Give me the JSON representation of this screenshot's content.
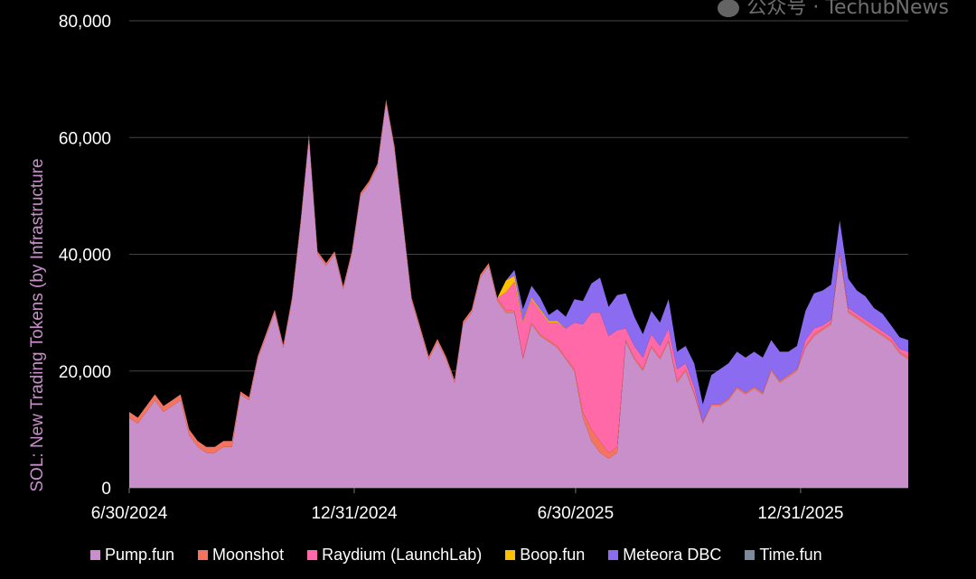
{
  "chart_data": {
    "type": "area",
    "stacked": true,
    "title": "",
    "xlabel": "",
    "ylabel": "SOL: New Trading Tokens (by Infrastructure",
    "ylim": [
      0,
      80000
    ],
    "yticks": [
      "0",
      "20,000",
      "40,000",
      "60,000",
      "80,000"
    ],
    "ytick_values": [
      0,
      20000,
      40000,
      60000,
      80000
    ],
    "xticks": [
      "6/30/2024",
      "12/31/2024",
      "6/30/2025",
      "12/31/2025"
    ],
    "xtick_values": [
      "2024-06-30",
      "2024-12-31",
      "2025-06-30",
      "2025-12-31"
    ],
    "grid": true,
    "legend_position": "bottom",
    "x": [
      "2024-06-30",
      "2024-07-07",
      "2024-07-14",
      "2024-07-21",
      "2024-07-28",
      "2024-08-04",
      "2024-08-11",
      "2024-08-18",
      "2024-08-25",
      "2024-09-01",
      "2024-09-08",
      "2024-09-15",
      "2024-09-22",
      "2024-09-29",
      "2024-10-06",
      "2024-10-13",
      "2024-10-20",
      "2024-10-27",
      "2024-11-03",
      "2024-11-10",
      "2024-11-17",
      "2024-11-24",
      "2024-12-01",
      "2024-12-08",
      "2024-12-15",
      "2024-12-22",
      "2024-12-29",
      "2025-01-05",
      "2025-01-12",
      "2025-01-19",
      "2025-01-26",
      "2025-02-02",
      "2025-02-09",
      "2025-02-16",
      "2025-02-23",
      "2025-03-02",
      "2025-03-09",
      "2025-03-16",
      "2025-03-23",
      "2025-03-30",
      "2025-04-06",
      "2025-04-13",
      "2025-04-20",
      "2025-04-27",
      "2025-05-04",
      "2025-05-11",
      "2025-05-18",
      "2025-05-25",
      "2025-06-01",
      "2025-06-08",
      "2025-06-15",
      "2025-06-22",
      "2025-06-29",
      "2025-07-06",
      "2025-07-13",
      "2025-07-20",
      "2025-07-27",
      "2025-08-03",
      "2025-08-10",
      "2025-08-17",
      "2025-08-24",
      "2025-08-31",
      "2025-09-07",
      "2025-09-14",
      "2025-09-21",
      "2025-09-28",
      "2025-10-05",
      "2025-10-12",
      "2025-10-19",
      "2025-10-26",
      "2025-11-02",
      "2025-11-09",
      "2025-11-16",
      "2025-11-23",
      "2025-11-30",
      "2025-12-07",
      "2025-12-14",
      "2025-12-21",
      "2025-12-28",
      "2026-01-04",
      "2026-01-11",
      "2026-01-18",
      "2026-01-25",
      "2026-02-01",
      "2026-02-08",
      "2026-02-15",
      "2026-02-22",
      "2026-03-01",
      "2026-03-08",
      "2026-03-15",
      "2026-03-22",
      "2026-03-29"
    ],
    "series": [
      {
        "name": "Pump.fun",
        "color": "#C88FCB",
        "values": [
          12000,
          11000,
          13000,
          15000,
          13000,
          14000,
          15000,
          9000,
          7000,
          6000,
          6000,
          7000,
          7000,
          16000,
          15000,
          22000,
          26000,
          30000,
          24000,
          32000,
          45000,
          60000,
          40000,
          38000,
          40000,
          34000,
          40000,
          50000,
          52000,
          55000,
          66000,
          58000,
          45000,
          32000,
          27000,
          22000,
          25000,
          22000,
          18000,
          28000,
          30000,
          36000,
          38000,
          32000,
          30000,
          30000,
          22000,
          28000,
          26000,
          25000,
          24000,
          22000,
          20000,
          12000,
          8000,
          6000,
          5000,
          6000,
          25000,
          22000,
          20000,
          24000,
          22000,
          25000,
          18000,
          20000,
          16000,
          11000,
          14000,
          14000,
          15000,
          17000,
          16000,
          17000,
          16000,
          20000,
          18000,
          19000,
          20000,
          24000,
          26000,
          27000,
          28000,
          40000,
          30000,
          29000,
          28000,
          27000,
          26000,
          25000,
          23000,
          22000
        ]
      },
      {
        "name": "Moonshot",
        "color": "#F4745F",
        "values": [
          1000,
          1000,
          1000,
          1000,
          1000,
          1000,
          1000,
          1000,
          1000,
          1000,
          1000,
          1000,
          1000,
          500,
          500,
          500,
          500,
          500,
          500,
          500,
          500,
          500,
          500,
          500,
          500,
          500,
          500,
          500,
          500,
          500,
          500,
          500,
          500,
          500,
          500,
          500,
          500,
          500,
          500,
          500,
          500,
          500,
          500,
          500,
          500,
          300,
          300,
          300,
          300,
          300,
          300,
          300,
          300,
          1000,
          2000,
          2000,
          1000,
          1000,
          300,
          300,
          300,
          300,
          300,
          300,
          300,
          300,
          300,
          300,
          300,
          300,
          300,
          300,
          300,
          300,
          300,
          300,
          300,
          300,
          300,
          300,
          300,
          300,
          300,
          300,
          300,
          300,
          300,
          300,
          300,
          300,
          300,
          300
        ]
      },
      {
        "name": "Raydium (LaunchLab)",
        "color": "#FF69A8",
        "values": [
          0,
          0,
          0,
          0,
          0,
          0,
          0,
          0,
          0,
          0,
          0,
          0,
          0,
          0,
          0,
          0,
          0,
          0,
          0,
          0,
          0,
          0,
          0,
          0,
          0,
          0,
          0,
          0,
          0,
          0,
          0,
          0,
          0,
          0,
          0,
          0,
          0,
          0,
          0,
          0,
          0,
          0,
          0,
          0,
          3000,
          5000,
          6000,
          4000,
          4000,
          3000,
          4000,
          5000,
          8000,
          15000,
          20000,
          22000,
          20000,
          20000,
          2000,
          2000,
          2000,
          2000,
          2000,
          2000,
          2000,
          1000,
          1000,
          0,
          0,
          0,
          0,
          0,
          0,
          0,
          0,
          0,
          0,
          0,
          0,
          1000,
          1000,
          500,
          500,
          500,
          500,
          500,
          500,
          500,
          500,
          500,
          500,
          1000
        ]
      },
      {
        "name": "Boop.fun",
        "color": "#FFC000",
        "values": [
          0,
          0,
          0,
          0,
          0,
          0,
          0,
          0,
          0,
          0,
          0,
          0,
          0,
          0,
          0,
          0,
          0,
          0,
          0,
          0,
          0,
          0,
          0,
          0,
          0,
          0,
          0,
          0,
          0,
          0,
          0,
          0,
          0,
          0,
          0,
          0,
          0,
          0,
          0,
          0,
          0,
          0,
          0,
          0,
          2000,
          1000,
          300,
          300,
          300,
          300,
          300,
          0,
          0,
          0,
          0,
          0,
          0,
          0,
          0,
          0,
          0,
          0,
          0,
          0,
          0,
          0,
          0,
          0,
          0,
          0,
          0,
          0,
          0,
          0,
          0,
          0,
          0,
          0,
          0,
          0,
          0,
          0,
          0,
          0,
          0,
          0,
          0,
          0,
          0,
          0,
          0,
          0
        ]
      },
      {
        "name": "Meteora DBC",
        "color": "#8B6CF0",
        "values": [
          0,
          0,
          0,
          0,
          0,
          0,
          0,
          0,
          0,
          0,
          0,
          0,
          0,
          0,
          0,
          0,
          0,
          0,
          0,
          0,
          0,
          0,
          0,
          0,
          0,
          0,
          0,
          0,
          0,
          0,
          0,
          0,
          0,
          0,
          0,
          0,
          0,
          0,
          0,
          0,
          0,
          0,
          0,
          0,
          0,
          1000,
          2000,
          2000,
          2000,
          1000,
          2000,
          2000,
          4000,
          4000,
          5000,
          6000,
          5000,
          6000,
          6000,
          5000,
          4000,
          4000,
          4000,
          5000,
          3000,
          3000,
          4000,
          3000,
          5000,
          6000,
          6000,
          6000,
          6000,
          6000,
          6000,
          5000,
          5000,
          4000,
          4000,
          5000,
          6000,
          6000,
          6000,
          5000,
          5000,
          4000,
          4000,
          3000,
          3000,
          2000,
          2000,
          2000
        ]
      },
      {
        "name": "Time.fun",
        "color": "#7D8A9B",
        "values": [
          0,
          0,
          0,
          0,
          0,
          0,
          0,
          0,
          0,
          0,
          0,
          0,
          0,
          0,
          0,
          0,
          0,
          0,
          0,
          0,
          0,
          0,
          0,
          0,
          0,
          0,
          0,
          0,
          0,
          0,
          0,
          0,
          0,
          0,
          0,
          0,
          0,
          0,
          0,
          0,
          0,
          0,
          0,
          0,
          0,
          0,
          0,
          0,
          0,
          0,
          0,
          0,
          0,
          0,
          0,
          0,
          0,
          0,
          0,
          0,
          0,
          0,
          0,
          0,
          0,
          0,
          0,
          0,
          0,
          0,
          0,
          0,
          0,
          0,
          0,
          0,
          0,
          0,
          0,
          0,
          0,
          0,
          0,
          0,
          0,
          0,
          0,
          0,
          0,
          0,
          0,
          0
        ]
      }
    ]
  },
  "watermark": {
    "text": "公众号 · TechubNews"
  }
}
